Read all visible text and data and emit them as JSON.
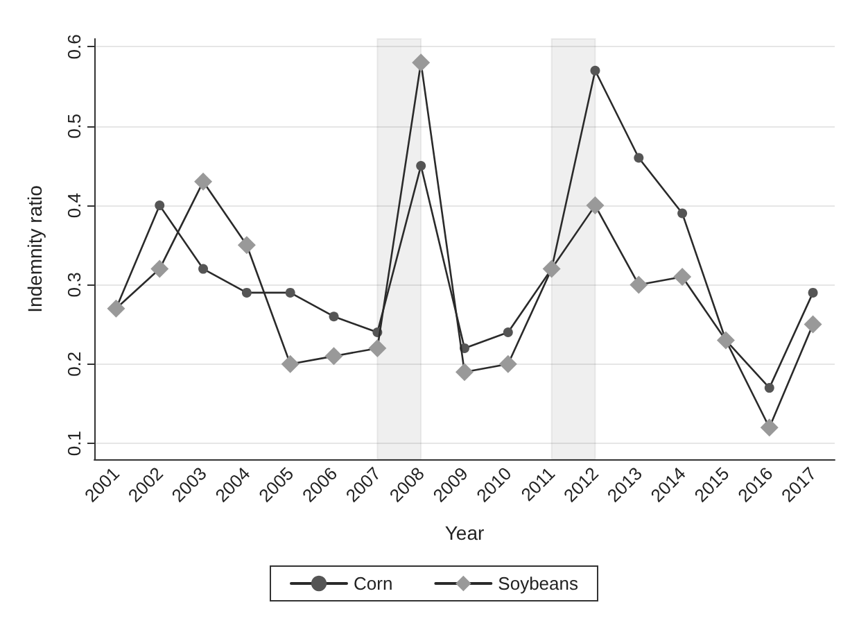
{
  "chart_data": {
    "type": "line",
    "xlabel": "Year",
    "ylabel": "Indemnity ratio",
    "categories": [
      "2001",
      "2002",
      "2003",
      "2004",
      "2005",
      "2006",
      "2007",
      "2008",
      "2009",
      "2010",
      "2011",
      "2012",
      "2013",
      "2014",
      "2015",
      "2016",
      "2017"
    ],
    "series": [
      {
        "name": "Corn",
        "color": "#555555",
        "marker": "circle",
        "values": [
          0.27,
          0.4,
          0.32,
          0.29,
          0.29,
          0.26,
          0.24,
          0.45,
          0.22,
          0.24,
          0.32,
          0.57,
          0.46,
          0.39,
          0.23,
          0.17,
          0.29
        ]
      },
      {
        "name": "Soybeans",
        "color": "#999999",
        "marker": "diamond",
        "values": [
          0.27,
          0.32,
          0.43,
          0.35,
          0.2,
          0.21,
          0.22,
          0.58,
          0.19,
          0.2,
          0.32,
          0.4,
          0.3,
          0.31,
          0.23,
          0.12,
          0.25
        ]
      }
    ],
    "ylim": [
      0.08,
      0.61
    ],
    "yticks": [
      0.1,
      0.2,
      0.3,
      0.4,
      0.5,
      0.6
    ],
    "grid": "y",
    "legend": "bottom",
    "line_style": "solid",
    "bands": [
      {
        "axis": "x",
        "from": "2007",
        "to": "2008"
      },
      {
        "axis": "x",
        "from": "2011",
        "to": "2012"
      }
    ]
  }
}
